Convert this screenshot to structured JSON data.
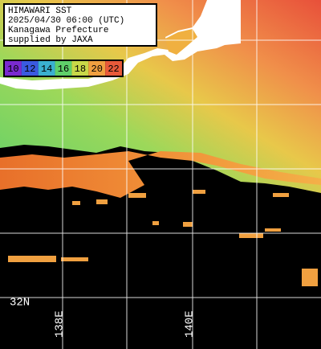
{
  "header": {
    "lines": [
      "HIMAWARI SST",
      "2025/04/30 06:00 (UTC)",
      "Kanagawa Prefecture",
      "supplied by JAXA"
    ]
  },
  "colorbar": {
    "labels": [
      10,
      12,
      14,
      16,
      18,
      20,
      22
    ]
  },
  "map": {
    "lat_label": "32N",
    "lon_labels": [
      "138E",
      "140E"
    ]
  }
}
